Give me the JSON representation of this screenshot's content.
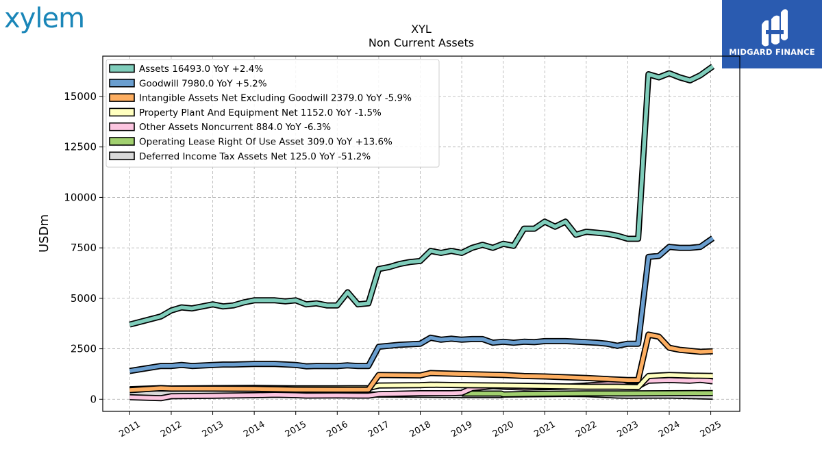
{
  "brand": {
    "left_logo": "xylem",
    "right_logo": "MIDGARD FINANCE",
    "logo_color": "#1a86b8",
    "right_bg": "#2a5bb0"
  },
  "chart_data": {
    "type": "line",
    "title": "XYL",
    "subtitle": "Non Current  Assets",
    "ylabel": "USDm",
    "xlabel": "",
    "ylim": [
      -600,
      17000
    ],
    "xlim": [
      2010.35,
      2025.7
    ],
    "yticks": [
      0,
      2500,
      5000,
      7500,
      10000,
      12500,
      15000
    ],
    "yticklabels": [
      "0",
      "2500",
      "5000",
      "7500",
      "10000",
      "12500",
      "15000"
    ],
    "xticks": [
      2011,
      2012,
      2013,
      2014,
      2015,
      2016,
      2017,
      2018,
      2019,
      2020,
      2021,
      2022,
      2023,
      2024,
      2025
    ],
    "xticklabels": [
      "2011",
      "2012",
      "2013",
      "2014",
      "2015",
      "2016",
      "2017",
      "2018",
      "2019",
      "2020",
      "2021",
      "2022",
      "2023",
      "2024",
      "2025"
    ],
    "grid": true,
    "legend_position": "top-left",
    "series": [
      {
        "name": "Assets  16493.0 YoY +2.4%",
        "color": "#7fcdbb",
        "points": [
          [
            2011.0,
            3700
          ],
          [
            2011.75,
            4100
          ],
          [
            2012.0,
            4400
          ],
          [
            2012.25,
            4550
          ],
          [
            2012.5,
            4500
          ],
          [
            2012.75,
            4600
          ],
          [
            2013.0,
            4700
          ],
          [
            2013.25,
            4600
          ],
          [
            2013.5,
            4650
          ],
          [
            2013.75,
            4800
          ],
          [
            2014.0,
            4900
          ],
          [
            2014.5,
            4900
          ],
          [
            2014.75,
            4850
          ],
          [
            2015.0,
            4900
          ],
          [
            2015.25,
            4700
          ],
          [
            2015.5,
            4750
          ],
          [
            2015.75,
            4650
          ],
          [
            2016.0,
            4650
          ],
          [
            2016.25,
            5300
          ],
          [
            2016.5,
            4700
          ],
          [
            2016.75,
            4750
          ],
          [
            2017.0,
            6450
          ],
          [
            2017.25,
            6550
          ],
          [
            2017.5,
            6700
          ],
          [
            2017.75,
            6800
          ],
          [
            2018.0,
            6850
          ],
          [
            2018.25,
            7350
          ],
          [
            2018.5,
            7250
          ],
          [
            2018.75,
            7350
          ],
          [
            2019.0,
            7250
          ],
          [
            2019.25,
            7500
          ],
          [
            2019.5,
            7650
          ],
          [
            2019.75,
            7500
          ],
          [
            2020.0,
            7700
          ],
          [
            2020.25,
            7600
          ],
          [
            2020.5,
            8450
          ],
          [
            2020.75,
            8450
          ],
          [
            2021.0,
            8800
          ],
          [
            2021.25,
            8550
          ],
          [
            2021.5,
            8800
          ],
          [
            2021.75,
            8150
          ],
          [
            2022.0,
            8300
          ],
          [
            2022.25,
            8250
          ],
          [
            2022.5,
            8200
          ],
          [
            2022.75,
            8100
          ],
          [
            2023.0,
            7950
          ],
          [
            2023.25,
            7950
          ],
          [
            2023.5,
            16100
          ],
          [
            2023.75,
            15950
          ],
          [
            2024.0,
            16150
          ],
          [
            2024.25,
            15950
          ],
          [
            2024.5,
            15800
          ],
          [
            2024.75,
            16050
          ],
          [
            2025.05,
            16493
          ]
        ]
      },
      {
        "name": "Goodwill  7980.0 YoY +5.2%",
        "color": "#6a9ecf",
        "points": [
          [
            2011.0,
            1400
          ],
          [
            2011.75,
            1650
          ],
          [
            2012.0,
            1650
          ],
          [
            2012.25,
            1700
          ],
          [
            2012.5,
            1650
          ],
          [
            2013.0,
            1700
          ],
          [
            2013.25,
            1720
          ],
          [
            2013.5,
            1720
          ],
          [
            2014.0,
            1750
          ],
          [
            2014.5,
            1750
          ],
          [
            2015.0,
            1700
          ],
          [
            2015.25,
            1630
          ],
          [
            2015.5,
            1650
          ],
          [
            2016.0,
            1640
          ],
          [
            2016.25,
            1680
          ],
          [
            2016.5,
            1650
          ],
          [
            2016.75,
            1650
          ],
          [
            2017.0,
            2600
          ],
          [
            2017.25,
            2650
          ],
          [
            2017.5,
            2700
          ],
          [
            2018.0,
            2750
          ],
          [
            2018.25,
            3050
          ],
          [
            2018.5,
            2950
          ],
          [
            2018.75,
            3000
          ],
          [
            2019.0,
            2950
          ],
          [
            2019.25,
            2980
          ],
          [
            2019.5,
            2980
          ],
          [
            2019.75,
            2800
          ],
          [
            2020.0,
            2850
          ],
          [
            2020.25,
            2800
          ],
          [
            2020.5,
            2850
          ],
          [
            2020.75,
            2830
          ],
          [
            2021.0,
            2880
          ],
          [
            2021.5,
            2880
          ],
          [
            2022.0,
            2830
          ],
          [
            2022.25,
            2800
          ],
          [
            2022.5,
            2750
          ],
          [
            2022.75,
            2650
          ],
          [
            2023.0,
            2750
          ],
          [
            2023.25,
            2750
          ],
          [
            2023.5,
            7050
          ],
          [
            2023.75,
            7100
          ],
          [
            2024.0,
            7550
          ],
          [
            2024.25,
            7500
          ],
          [
            2024.5,
            7500
          ],
          [
            2024.75,
            7550
          ],
          [
            2025.05,
            7980
          ]
        ]
      },
      {
        "name": "Intangible Assets Net Excluding Goodwill  2379.0 YoY -5.9%",
        "color": "#fdae61",
        "points": [
          [
            2011.0,
            450
          ],
          [
            2011.75,
            550
          ],
          [
            2012.0,
            530
          ],
          [
            2013.0,
            530
          ],
          [
            2014.0,
            520
          ],
          [
            2015.0,
            480
          ],
          [
            2016.0,
            470
          ],
          [
            2016.75,
            480
          ],
          [
            2017.0,
            1200
          ],
          [
            2018.0,
            1180
          ],
          [
            2018.25,
            1300
          ],
          [
            2019.0,
            1250
          ],
          [
            2020.0,
            1200
          ],
          [
            2020.5,
            1150
          ],
          [
            2021.0,
            1130
          ],
          [
            2022.0,
            1050
          ],
          [
            2022.5,
            1000
          ],
          [
            2023.0,
            950
          ],
          [
            2023.25,
            950
          ],
          [
            2023.5,
            3200
          ],
          [
            2023.75,
            3100
          ],
          [
            2024.0,
            2550
          ],
          [
            2024.25,
            2450
          ],
          [
            2024.5,
            2400
          ],
          [
            2024.75,
            2350
          ],
          [
            2025.05,
            2379
          ]
        ]
      },
      {
        "name": "Property Plant And Equipment Net  1152.0 YoY -1.5%",
        "color": "#ffffbf",
        "points": [
          [
            2011.0,
            500
          ],
          [
            2011.75,
            550
          ],
          [
            2012.0,
            530
          ],
          [
            2013.0,
            550
          ],
          [
            2014.0,
            560
          ],
          [
            2015.0,
            540
          ],
          [
            2016.0,
            540
          ],
          [
            2016.75,
            550
          ],
          [
            2017.0,
            680
          ],
          [
            2018.0,
            700
          ],
          [
            2018.25,
            720
          ],
          [
            2019.0,
            700
          ],
          [
            2020.0,
            680
          ],
          [
            2021.0,
            650
          ],
          [
            2022.0,
            620
          ],
          [
            2022.75,
            620
          ],
          [
            2023.25,
            600
          ],
          [
            2023.5,
            1150
          ],
          [
            2024.0,
            1200
          ],
          [
            2024.5,
            1170
          ],
          [
            2025.05,
            1152
          ]
        ]
      },
      {
        "name": "Other Assets Noncurrent  884.0 YoY -6.3%",
        "color": "#fcc5e0",
        "points": [
          [
            2011.0,
            100
          ],
          [
            2011.75,
            50
          ],
          [
            2012.0,
            150
          ],
          [
            2013.0,
            170
          ],
          [
            2014.0,
            200
          ],
          [
            2014.5,
            220
          ],
          [
            2015.0,
            200
          ],
          [
            2015.25,
            180
          ],
          [
            2016.0,
            190
          ],
          [
            2016.5,
            180
          ],
          [
            2016.75,
            180
          ],
          [
            2017.0,
            250
          ],
          [
            2018.0,
            300
          ],
          [
            2018.75,
            300
          ],
          [
            2019.0,
            320
          ],
          [
            2019.25,
            550
          ],
          [
            2019.75,
            650
          ],
          [
            2020.0,
            620
          ],
          [
            2020.5,
            580
          ],
          [
            2021.0,
            600
          ],
          [
            2021.5,
            620
          ],
          [
            2022.0,
            680
          ],
          [
            2022.75,
            780
          ],
          [
            2023.0,
            650
          ],
          [
            2023.25,
            650
          ],
          [
            2023.5,
            920
          ],
          [
            2024.0,
            950
          ],
          [
            2024.5,
            920
          ],
          [
            2024.75,
            960
          ],
          [
            2025.05,
            884
          ]
        ]
      },
      {
        "name": "Operating Lease Right Of Use Asset  309.0 YoY +13.6%",
        "color": "#a1d06f",
        "points": [
          [
            2019.0,
            280
          ],
          [
            2019.25,
            280
          ],
          [
            2019.5,
            280
          ],
          [
            2019.75,
            280
          ],
          [
            2019.95,
            280
          ],
          [
            2020.0,
            240
          ],
          [
            2021.0,
            270
          ],
          [
            2022.0,
            290
          ],
          [
            2023.0,
            290
          ],
          [
            2024.0,
            300
          ],
          [
            2025.05,
            309
          ]
        ]
      },
      {
        "name": "Deferred Income Tax Assets Net  125.0 YoY -51.2%",
        "color": "#d9d9d9",
        "points": [
          [
            2011.0,
            300
          ],
          [
            2012.0,
            280
          ],
          [
            2013.0,
            290
          ],
          [
            2014.0,
            270
          ],
          [
            2015.0,
            250
          ],
          [
            2016.0,
            250
          ],
          [
            2017.0,
            230
          ],
          [
            2018.0,
            220
          ],
          [
            2019.0,
            200
          ],
          [
            2019.95,
            200
          ],
          [
            2020.0,
            230
          ],
          [
            2021.0,
            250
          ],
          [
            2021.5,
            260
          ],
          [
            2022.0,
            250
          ],
          [
            2022.75,
            180
          ],
          [
            2023.0,
            170
          ],
          [
            2024.0,
            180
          ],
          [
            2025.05,
            125
          ]
        ]
      }
    ]
  }
}
